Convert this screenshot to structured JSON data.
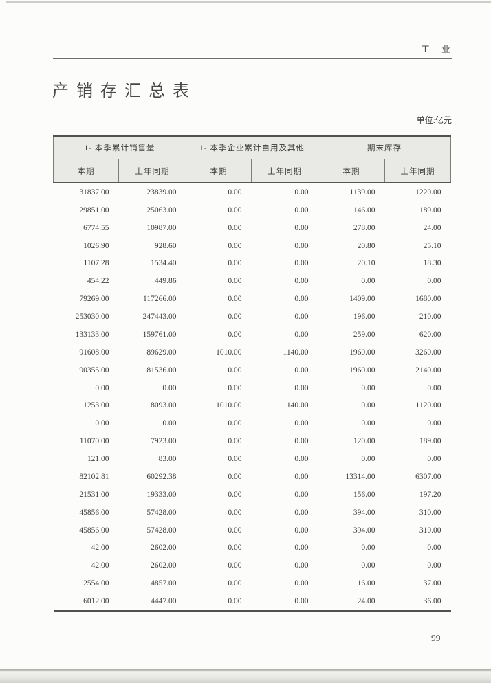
{
  "page": {
    "running_head": "工　业",
    "title": "产销存汇总表",
    "unit_label": "单位:亿元",
    "page_number": "99"
  },
  "colors": {
    "header_bg": "#e9e9e5",
    "rule_dark": "#515150",
    "text": "#3c3c3c"
  },
  "table": {
    "groups": [
      {
        "label": "1- 本季累计销售量"
      },
      {
        "label": "1- 本季企业累计自用及其他"
      },
      {
        "label": "期末库存"
      }
    ],
    "subheaders": [
      "本期",
      "上年同期",
      "本期",
      "上年同期",
      "本期",
      "上年同期"
    ],
    "rows": [
      [
        "31837.00",
        "23839.00",
        "0.00",
        "0.00",
        "1139.00",
        "1220.00"
      ],
      [
        "29851.00",
        "25063.00",
        "0.00",
        "0.00",
        "146.00",
        "189.00"
      ],
      [
        "6774.55",
        "10987.00",
        "0.00",
        "0.00",
        "278.00",
        "24.00"
      ],
      [
        "1026.90",
        "928.60",
        "0.00",
        "0.00",
        "20.80",
        "25.10"
      ],
      [
        "1107.28",
        "1534.40",
        "0.00",
        "0.00",
        "20.10",
        "18.30"
      ],
      [
        "454.22",
        "449.86",
        "0.00",
        "0.00",
        "0.00",
        "0.00"
      ],
      [
        "79269.00",
        "117266.00",
        "0.00",
        "0.00",
        "1409.00",
        "1680.00"
      ],
      [
        "253030.00",
        "247443.00",
        "0.00",
        "0.00",
        "196.00",
        "210.00"
      ],
      [
        "133133.00",
        "159761.00",
        "0.00",
        "0.00",
        "259.00",
        "620.00"
      ],
      [
        "91608.00",
        "89629.00",
        "1010.00",
        "1140.00",
        "1960.00",
        "3260.00"
      ],
      [
        "90355.00",
        "81536.00",
        "0.00",
        "0.00",
        "1960.00",
        "2140.00"
      ],
      [
        "0.00",
        "0.00",
        "0.00",
        "0.00",
        "0.00",
        "0.00"
      ],
      [
        "1253.00",
        "8093.00",
        "1010.00",
        "1140.00",
        "0.00",
        "1120.00"
      ],
      [
        "0.00",
        "0.00",
        "0.00",
        "0.00",
        "0.00",
        "0.00"
      ],
      [
        "11070.00",
        "7923.00",
        "0.00",
        "0.00",
        "120.00",
        "189.00"
      ],
      [
        "121.00",
        "83.00",
        "0.00",
        "0.00",
        "0.00",
        "0.00"
      ],
      [
        "82102.81",
        "60292.38",
        "0.00",
        "0.00",
        "13314.00",
        "6307.00"
      ],
      [
        "21531.00",
        "19333.00",
        "0.00",
        "0.00",
        "156.00",
        "197.20"
      ],
      [
        "45856.00",
        "57428.00",
        "0.00",
        "0.00",
        "394.00",
        "310.00"
      ],
      [
        "45856.00",
        "57428.00",
        "0.00",
        "0.00",
        "394.00",
        "310.00"
      ],
      [
        "42.00",
        "2602.00",
        "0.00",
        "0.00",
        "0.00",
        "0.00"
      ],
      [
        "42.00",
        "2602.00",
        "0.00",
        "0.00",
        "0.00",
        "0.00"
      ],
      [
        "2554.00",
        "4857.00",
        "0.00",
        "0.00",
        "16.00",
        "37.00"
      ],
      [
        "6012.00",
        "4447.00",
        "0.00",
        "0.00",
        "24.00",
        "36.00"
      ]
    ]
  }
}
